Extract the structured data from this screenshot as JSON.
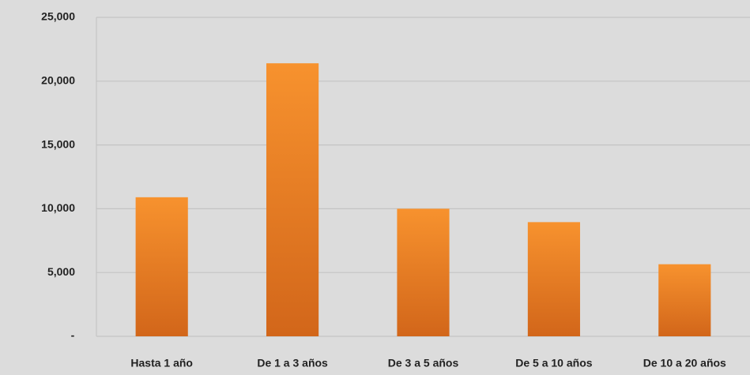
{
  "chart_data": {
    "type": "bar",
    "categories": [
      "Hasta 1 año",
      "De 1 a 3 años",
      "De 3 a 5 años",
      "De 5 a 10 años",
      "De 10 a 20 años"
    ],
    "values": [
      10900,
      21400,
      10000,
      8950,
      5650
    ],
    "color": "#f7922e",
    "ylim": [
      0,
      25000
    ],
    "yticks": [
      {
        "value": 0,
        "label": "-"
      },
      {
        "value": 5000,
        "label": "5,000"
      },
      {
        "value": 10000,
        "label": "10,000"
      },
      {
        "value": 15000,
        "label": "15,000"
      },
      {
        "value": 20000,
        "label": "20,000"
      },
      {
        "value": 25000,
        "label": "25,000"
      }
    ],
    "grid": true
  }
}
